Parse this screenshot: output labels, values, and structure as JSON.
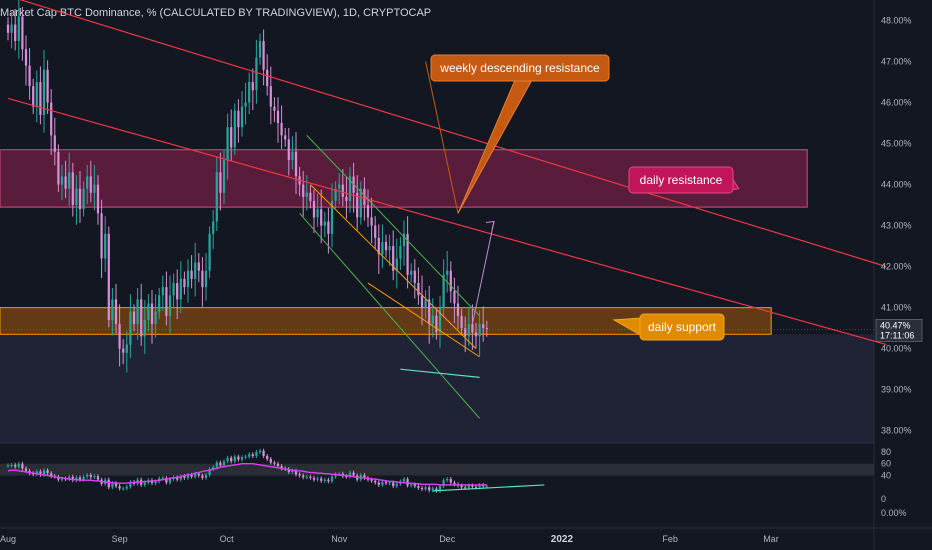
{
  "header": {
    "title": "Market Cap BTC Dominance, % (CALCULATED BY TRADINGVIEW), 1D, CRYPTOCAP"
  },
  "colors": {
    "background": "#131722",
    "up": "#26a69a",
    "down": "#d88ed8",
    "resistance_line": "#f23645",
    "channel": "#4caf50",
    "wedge": "#ff9800",
    "rsi_line": "#e040fb",
    "support_zone": "#f57c00",
    "resistance_zone": "#b0235c",
    "arrow": "#c38ad6",
    "trendline_teal": "#5ce1b8"
  },
  "chart_data": {
    "type": "candlestick",
    "y_axis": {
      "ticks": [
        38.0,
        39.0,
        40.0,
        41.0,
        42.0,
        43.0,
        44.0,
        45.0,
        46.0,
        47.0,
        48.0
      ],
      "ylim": [
        37.7,
        48.5
      ],
      "tick_labels": [
        "38.00%",
        "39.00%",
        "40.00%",
        "41.00%",
        "42.00%",
        "43.00%",
        "44.00%",
        "45.00%",
        "46.00%",
        "47.00%",
        "48.00%"
      ]
    },
    "x_axis": {
      "labels": [
        {
          "text": "Aug",
          "day": 0,
          "bold": false
        },
        {
          "text": "Sep",
          "day": 31,
          "bold": false
        },
        {
          "text": "Oct",
          "day": 61,
          "bold": false
        },
        {
          "text": "Nov",
          "day": 92,
          "bold": false
        },
        {
          "text": "Dec",
          "day": 122,
          "bold": false
        },
        {
          "text": "2022",
          "day": 153,
          "bold": true
        },
        {
          "text": "Feb",
          "day": 184,
          "bold": false
        },
        {
          "text": "Mar",
          "day": 212,
          "bold": false
        }
      ]
    },
    "last_price": {
      "value": 40.47,
      "label": "40.47%",
      "timer": "17:11:06"
    },
    "series_closes": [
      47.7,
      47.9,
      47.5,
      48.1,
      47.3,
      46.9,
      46.4,
      45.9,
      46.5,
      45.7,
      46.8,
      46.0,
      45.2,
      44.8,
      44.0,
      44.2,
      43.9,
      44.3,
      43.5,
      43.9,
      43.4,
      43.9,
      44.2,
      43.8,
      44.0,
      43.3,
      42.2,
      42.8,
      40.7,
      41.2,
      40.6,
      40.0,
      39.9,
      40.1,
      40.9,
      40.6,
      41.2,
      40.3,
      40.7,
      41.1,
      40.6,
      40.9,
      41.3,
      41.5,
      40.8,
      41.3,
      41.6,
      41.2,
      41.7,
      41.5,
      41.9,
      41.7,
      42.1,
      41.9,
      41.5,
      41.9,
      42.8,
      43.1,
      44.3,
      43.8,
      44.6,
      45.4,
      44.9,
      45.8,
      45.4,
      45.9,
      46.0,
      46.5,
      46.3,
      47.1,
      47.5,
      46.8,
      46.4,
      45.9,
      45.8,
      45.5,
      45.2,
      45.1,
      44.6,
      44.8,
      44.2,
      44.0,
      43.7,
      43.8,
      43.6,
      43.2,
      43.4,
      43.0,
      43.1,
      42.8,
      43.6,
      43.9,
      44.0,
      43.7,
      43.6,
      44.2,
      43.8,
      43.2,
      43.9,
      43.5,
      43.2,
      43.0,
      42.7,
      42.3,
      42.6,
      42.4,
      42.5,
      41.9,
      42.2,
      42.5,
      42.8,
      41.8,
      41.9,
      41.6,
      41.3,
      41.0,
      41.2,
      40.6,
      40.8,
      40.4,
      41.0,
      41.8,
      41.9,
      41.4,
      41.1,
      40.8,
      40.5,
      40.3,
      40.6,
      40.4,
      40.3,
      40.6,
      40.5,
      40.47
    ],
    "start_day": 0,
    "levels": {
      "daily_resistance_zone": [
        43.45,
        44.85
      ],
      "daily_support_zone": [
        40.35,
        41.0
      ]
    },
    "lines": [
      {
        "name": "weekly descending resistance",
        "points": [
          [
            0,
            48.6
          ],
          [
            244,
            42.0
          ]
        ]
      },
      {
        "name": "red descending line",
        "points": [
          [
            0,
            46.1
          ],
          [
            244,
            40.1
          ]
        ]
      },
      {
        "name": "green channel upper",
        "points": [
          [
            83,
            45.2
          ],
          [
            131,
            40.8
          ]
        ]
      },
      {
        "name": "green channel lower",
        "points": [
          [
            81,
            43.3
          ],
          [
            131,
            38.3
          ]
        ]
      },
      {
        "name": "orange wedge upper",
        "points": [
          [
            84,
            44.0
          ],
          [
            130,
            40.0
          ]
        ]
      },
      {
        "name": "teal support",
        "points": [
          [
            109,
            39.5
          ],
          [
            131,
            39.3
          ]
        ]
      },
      {
        "name": "projection arrow",
        "points": [
          [
            129,
            40.6
          ],
          [
            135,
            43.1
          ]
        ]
      },
      {
        "name": "weekly descending resistance pointer",
        "points": [
          [
            116,
            47.0
          ],
          [
            125,
            43.3
          ]
        ]
      }
    ],
    "annotations": [
      {
        "text": "weekly descending resistance",
        "anchor_day": 112,
        "anchor_value": 47.1
      },
      {
        "text": "daily resistance",
        "anchor_day": 146,
        "anchor_value": 44.2
      },
      {
        "text": "daily support",
        "anchor_day": 144,
        "anchor_value": 40.5
      }
    ],
    "rsi": {
      "ticks": [
        0,
        40,
        60,
        80
      ],
      "band": [
        40,
        60
      ],
      "ylim": [
        -10,
        90
      ],
      "values": [
        57,
        58,
        55,
        60,
        52,
        48,
        44,
        42,
        47,
        41,
        49,
        44,
        39,
        38,
        33,
        35,
        34,
        38,
        32,
        37,
        33,
        38,
        41,
        37,
        39,
        33,
        26,
        33,
        20,
        27,
        22,
        18,
        18,
        21,
        29,
        26,
        33,
        24,
        28,
        32,
        27,
        30,
        35,
        36,
        28,
        34,
        37,
        33,
        39,
        36,
        41,
        38,
        43,
        40,
        36,
        41,
        51,
        54,
        62,
        57,
        64,
        70,
        64,
        72,
        67,
        71,
        72,
        76,
        73,
        80,
        82,
        73,
        68,
        62,
        60,
        56,
        52,
        51,
        46,
        48,
        42,
        40,
        37,
        38,
        36,
        33,
        35,
        31,
        33,
        30,
        38,
        42,
        43,
        39,
        38,
        45,
        40,
        33,
        41,
        36,
        33,
        31,
        28,
        24,
        29,
        27,
        28,
        22,
        26,
        30,
        34,
        23,
        25,
        22,
        19,
        17,
        20,
        15,
        18,
        14,
        22,
        32,
        34,
        28,
        25,
        23,
        20,
        19,
        23,
        21,
        20,
        24,
        22,
        22
      ],
      "ma": [
        48,
        49,
        49,
        48,
        47,
        46,
        45,
        44,
        43,
        42,
        41,
        40,
        39,
        38,
        37,
        36,
        35,
        34,
        33,
        33,
        32,
        32,
        32,
        32,
        31,
        31,
        30,
        29,
        28,
        28,
        27,
        27,
        27,
        27,
        28,
        28,
        29,
        29,
        30,
        30,
        31,
        31,
        32,
        33,
        34,
        35,
        36,
        37,
        38,
        40,
        41,
        42,
        44,
        45,
        47,
        48,
        49,
        51,
        52,
        54,
        55,
        56,
        57,
        58,
        59,
        60,
        60,
        60,
        60,
        59,
        58,
        57,
        56,
        55,
        54,
        53,
        52,
        51,
        50,
        49,
        48,
        48,
        47,
        46,
        45,
        45,
        44,
        44,
        43,
        43,
        42,
        42,
        41,
        40,
        40,
        39,
        38,
        37,
        37,
        36,
        35,
        34,
        34,
        33,
        32,
        31,
        30,
        30,
        29,
        28,
        28,
        27,
        27,
        26,
        26,
        25,
        25,
        25,
        25,
        25,
        24,
        24,
        24,
        24,
        24,
        24,
        24,
        24,
        24,
        24,
        24,
        24,
        24,
        24
      ]
    }
  }
}
